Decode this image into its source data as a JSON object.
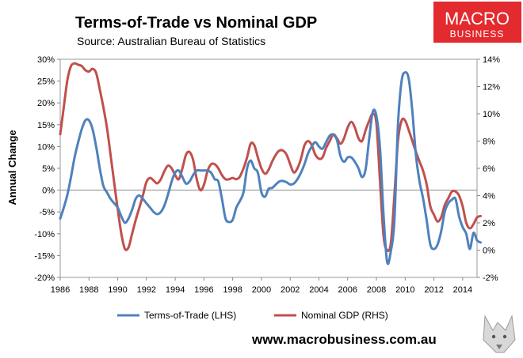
{
  "header": {
    "title": "Terms-of-Trade vs Nominal GDP",
    "subtitle": "Source: Australian Bureau of Statistics"
  },
  "logo": {
    "line1": "MACRO",
    "line2": "BUSINESS",
    "color": "#e32a2f"
  },
  "footer": {
    "url": "www.macrobusiness.com.au"
  },
  "chart_data": {
    "type": "line",
    "title": "Terms-of-Trade vs Nominal GDP",
    "subtitle": "Source: Australian Bureau of Statistics",
    "ylabel": "Annual Change",
    "xlabel": "",
    "xlim": [
      1986,
      2015
    ],
    "x_ticks": [
      "1986",
      "1988",
      "1990",
      "1992",
      "1994",
      "1996",
      "1998",
      "2000",
      "2002",
      "2004",
      "2006",
      "2008",
      "2010",
      "2012",
      "2014"
    ],
    "y_left_ticks": [
      "30%",
      "25%",
      "20%",
      "15%",
      "10%",
      "5%",
      "0%",
      "-5%",
      "-10%",
      "-15%",
      "-20%"
    ],
    "y_right_ticks": [
      "14%",
      "12%",
      "10%",
      "8%",
      "6%",
      "4%",
      "2%",
      "0%",
      "-2%"
    ],
    "ylim_left": [
      -0.2,
      0.3
    ],
    "ylim_right": [
      -0.02,
      0.14
    ],
    "grid": false,
    "zero_line": true,
    "legend_position": "bottom",
    "series": [
      {
        "name": "Terms-of-Trade (LHS)",
        "axis": "left",
        "color": "#4f81bd",
        "points": [
          [
            1986.0,
            -0.065
          ],
          [
            1986.25,
            -0.04
          ],
          [
            1986.5,
            -0.01
          ],
          [
            1986.75,
            0.03
          ],
          [
            1987.0,
            0.075
          ],
          [
            1987.25,
            0.11
          ],
          [
            1987.5,
            0.14
          ],
          [
            1987.75,
            0.16
          ],
          [
            1988.0,
            0.16
          ],
          [
            1988.25,
            0.14
          ],
          [
            1988.5,
            0.1
          ],
          [
            1988.75,
            0.05
          ],
          [
            1989.0,
            0.01
          ],
          [
            1989.25,
            -0.005
          ],
          [
            1989.5,
            -0.02
          ],
          [
            1989.75,
            -0.03
          ],
          [
            1990.0,
            -0.04
          ],
          [
            1990.25,
            -0.06
          ],
          [
            1990.5,
            -0.075
          ],
          [
            1990.75,
            -0.065
          ],
          [
            1991.0,
            -0.045
          ],
          [
            1991.25,
            -0.02
          ],
          [
            1991.5,
            -0.012
          ],
          [
            1991.75,
            -0.02
          ],
          [
            1992.0,
            -0.03
          ],
          [
            1992.25,
            -0.04
          ],
          [
            1992.5,
            -0.05
          ],
          [
            1992.75,
            -0.055
          ],
          [
            1993.0,
            -0.05
          ],
          [
            1993.25,
            -0.035
          ],
          [
            1993.5,
            -0.01
          ],
          [
            1993.75,
            0.02
          ],
          [
            1994.0,
            0.04
          ],
          [
            1994.25,
            0.045
          ],
          [
            1994.5,
            0.03
          ],
          [
            1994.75,
            0.015
          ],
          [
            1995.0,
            0.02
          ],
          [
            1995.25,
            0.035
          ],
          [
            1995.5,
            0.045
          ],
          [
            1995.75,
            0.045
          ],
          [
            1996.0,
            0.045
          ],
          [
            1996.25,
            0.045
          ],
          [
            1996.5,
            0.04
          ],
          [
            1996.75,
            0.025
          ],
          [
            1997.0,
            0.02
          ],
          [
            1997.25,
            -0.02
          ],
          [
            1997.5,
            -0.065
          ],
          [
            1997.75,
            -0.073
          ],
          [
            1998.0,
            -0.068
          ],
          [
            1998.25,
            -0.04
          ],
          [
            1998.5,
            -0.025
          ],
          [
            1998.75,
            -0.005
          ],
          [
            1999.0,
            0.05
          ],
          [
            1999.25,
            0.068
          ],
          [
            1999.5,
            0.05
          ],
          [
            1999.75,
            0.04
          ],
          [
            2000.0,
            -0.005
          ],
          [
            2000.25,
            -0.015
          ],
          [
            2000.5,
            0.003
          ],
          [
            2000.75,
            0.005
          ],
          [
            2001.0,
            0.013
          ],
          [
            2001.25,
            0.02
          ],
          [
            2001.5,
            0.021
          ],
          [
            2001.75,
            0.018
          ],
          [
            2002.0,
            0.013
          ],
          [
            2002.25,
            0.015
          ],
          [
            2002.5,
            0.025
          ],
          [
            2002.75,
            0.04
          ],
          [
            2003.0,
            0.06
          ],
          [
            2003.25,
            0.085
          ],
          [
            2003.5,
            0.1
          ],
          [
            2003.75,
            0.11
          ],
          [
            2004.0,
            0.1
          ],
          [
            2004.25,
            0.095
          ],
          [
            2004.5,
            0.11
          ],
          [
            2004.75,
            0.125
          ],
          [
            2005.0,
            0.127
          ],
          [
            2005.25,
            0.115
          ],
          [
            2005.5,
            0.078
          ],
          [
            2005.75,
            0.065
          ],
          [
            2006.0,
            0.075
          ],
          [
            2006.25,
            0.075
          ],
          [
            2006.5,
            0.065
          ],
          [
            2006.75,
            0.05
          ],
          [
            2007.0,
            0.03
          ],
          [
            2007.25,
            0.048
          ],
          [
            2007.5,
            0.12
          ],
          [
            2007.75,
            0.18
          ],
          [
            2008.0,
            0.17
          ],
          [
            2008.25,
            0.095
          ],
          [
            2008.5,
            -0.06
          ],
          [
            2008.75,
            -0.165
          ],
          [
            2009.0,
            -0.14
          ],
          [
            2009.25,
            -0.07
          ],
          [
            2009.5,
            0.15
          ],
          [
            2009.75,
            0.25
          ],
          [
            2010.0,
            0.27
          ],
          [
            2010.25,
            0.255
          ],
          [
            2010.5,
            0.18
          ],
          [
            2010.75,
            0.08
          ],
          [
            2011.0,
            0.02
          ],
          [
            2011.25,
            -0.02
          ],
          [
            2011.5,
            -0.07
          ],
          [
            2011.75,
            -0.125
          ],
          [
            2012.0,
            -0.135
          ],
          [
            2012.25,
            -0.125
          ],
          [
            2012.5,
            -0.095
          ],
          [
            2012.75,
            -0.05
          ],
          [
            2013.0,
            -0.03
          ],
          [
            2013.25,
            -0.022
          ],
          [
            2013.5,
            -0.02
          ],
          [
            2013.75,
            -0.06
          ],
          [
            2014.0,
            -0.085
          ],
          [
            2014.25,
            -0.1
          ],
          [
            2014.5,
            -0.135
          ],
          [
            2014.75,
            -0.098
          ],
          [
            2015.0,
            -0.115
          ],
          [
            2015.25,
            -0.12
          ]
        ]
      },
      {
        "name": "Nominal GDP (RHS)",
        "axis": "right",
        "color": "#c0504d",
        "points": [
          [
            1986.0,
            0.085
          ],
          [
            1986.25,
            0.105
          ],
          [
            1986.5,
            0.125
          ],
          [
            1986.75,
            0.135
          ],
          [
            1987.0,
            0.137
          ],
          [
            1987.25,
            0.136
          ],
          [
            1987.5,
            0.135
          ],
          [
            1987.75,
            0.132
          ],
          [
            1988.0,
            0.131
          ],
          [
            1988.25,
            0.133
          ],
          [
            1988.5,
            0.13
          ],
          [
            1988.75,
            0.118
          ],
          [
            1989.0,
            0.105
          ],
          [
            1989.25,
            0.09
          ],
          [
            1989.5,
            0.07
          ],
          [
            1989.75,
            0.05
          ],
          [
            1990.0,
            0.03
          ],
          [
            1990.25,
            0.012
          ],
          [
            1990.5,
            0.001
          ],
          [
            1990.75,
            0.002
          ],
          [
            1991.0,
            0.012
          ],
          [
            1991.25,
            0.022
          ],
          [
            1991.5,
            0.031
          ],
          [
            1991.75,
            0.04
          ],
          [
            1992.0,
            0.05
          ],
          [
            1992.25,
            0.053
          ],
          [
            1992.5,
            0.051
          ],
          [
            1992.75,
            0.049
          ],
          [
            1993.0,
            0.052
          ],
          [
            1993.25,
            0.058
          ],
          [
            1993.5,
            0.062
          ],
          [
            1993.75,
            0.06
          ],
          [
            1994.0,
            0.055
          ],
          [
            1994.25,
            0.052
          ],
          [
            1994.5,
            0.06
          ],
          [
            1994.75,
            0.07
          ],
          [
            1995.0,
            0.072
          ],
          [
            1995.25,
            0.066
          ],
          [
            1995.5,
            0.052
          ],
          [
            1995.75,
            0.044
          ],
          [
            1996.0,
            0.048
          ],
          [
            1996.25,
            0.058
          ],
          [
            1996.5,
            0.063
          ],
          [
            1996.75,
            0.063
          ],
          [
            1997.0,
            0.06
          ],
          [
            1997.25,
            0.055
          ],
          [
            1997.5,
            0.052
          ],
          [
            1997.75,
            0.052
          ],
          [
            1998.0,
            0.053
          ],
          [
            1998.25,
            0.052
          ],
          [
            1998.5,
            0.054
          ],
          [
            1998.75,
            0.06
          ],
          [
            1999.0,
            0.068
          ],
          [
            1999.25,
            0.078
          ],
          [
            1999.5,
            0.077
          ],
          [
            1999.75,
            0.068
          ],
          [
            2000.0,
            0.06
          ],
          [
            2000.25,
            0.056
          ],
          [
            2000.5,
            0.059
          ],
          [
            2000.75,
            0.065
          ],
          [
            2001.0,
            0.07
          ],
          [
            2001.25,
            0.073
          ],
          [
            2001.5,
            0.073
          ],
          [
            2001.75,
            0.07
          ],
          [
            2002.0,
            0.063
          ],
          [
            2002.25,
            0.057
          ],
          [
            2002.5,
            0.06
          ],
          [
            2002.75,
            0.067
          ],
          [
            2003.0,
            0.077
          ],
          [
            2003.25,
            0.08
          ],
          [
            2003.5,
            0.077
          ],
          [
            2003.75,
            0.07
          ],
          [
            2004.0,
            0.067
          ],
          [
            2004.25,
            0.068
          ],
          [
            2004.5,
            0.075
          ],
          [
            2004.75,
            0.08
          ],
          [
            2005.0,
            0.085
          ],
          [
            2005.25,
            0.082
          ],
          [
            2005.5,
            0.078
          ],
          [
            2005.75,
            0.082
          ],
          [
            2006.0,
            0.09
          ],
          [
            2006.25,
            0.094
          ],
          [
            2006.5,
            0.09
          ],
          [
            2006.75,
            0.082
          ],
          [
            2007.0,
            0.08
          ],
          [
            2007.25,
            0.088
          ],
          [
            2007.5,
            0.095
          ],
          [
            2007.75,
            0.1
          ],
          [
            2008.0,
            0.093
          ],
          [
            2008.25,
            0.05
          ],
          [
            2008.5,
            0.01
          ],
          [
            2008.75,
            0.0
          ],
          [
            2009.0,
            0.005
          ],
          [
            2009.25,
            0.04
          ],
          [
            2009.5,
            0.08
          ],
          [
            2009.75,
            0.095
          ],
          [
            2010.0,
            0.095
          ],
          [
            2010.25,
            0.088
          ],
          [
            2010.5,
            0.08
          ],
          [
            2010.75,
            0.072
          ],
          [
            2011.0,
            0.065
          ],
          [
            2011.25,
            0.058
          ],
          [
            2011.5,
            0.048
          ],
          [
            2011.75,
            0.032
          ],
          [
            2012.0,
            0.026
          ],
          [
            2012.25,
            0.021
          ],
          [
            2012.5,
            0.024
          ],
          [
            2012.75,
            0.033
          ],
          [
            2013.0,
            0.038
          ],
          [
            2013.25,
            0.043
          ],
          [
            2013.5,
            0.043
          ],
          [
            2013.75,
            0.04
          ],
          [
            2014.0,
            0.032
          ],
          [
            2014.25,
            0.02
          ],
          [
            2014.5,
            0.016
          ],
          [
            2014.75,
            0.019
          ],
          [
            2015.0,
            0.024
          ],
          [
            2015.25,
            0.025
          ]
        ]
      }
    ]
  }
}
